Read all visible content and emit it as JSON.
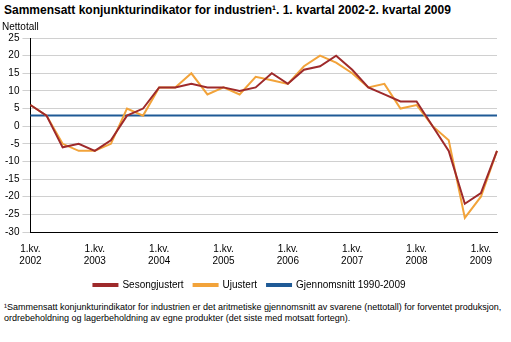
{
  "chart_data": {
    "type": "line",
    "title": "Sammensatt konjunkturindikator for industrien¹. 1. kvartal 2002-2. kvartal 2009",
    "y_label": "Nettotall",
    "footnote": "¹Sammensatt konjunkturindikator for industrien er det aritmetiske gjennomsnitt av svarene (nettotall) for forventet produksjon, ordrebeholdning og lagerbeholdning av egne produkter (det siste med motsatt fortegn).",
    "categories": [
      [
        "1.kv.",
        "2002"
      ],
      null,
      null,
      null,
      [
        "1.kv.",
        "2003"
      ],
      null,
      null,
      null,
      [
        "1.kv.",
        "2004"
      ],
      null,
      null,
      null,
      [
        "1.kv.",
        "2005"
      ],
      null,
      null,
      null,
      [
        "1.kv.",
        "2006"
      ],
      null,
      null,
      null,
      [
        "1.kv.",
        "2007"
      ],
      null,
      null,
      null,
      [
        "1.kv.",
        "2008"
      ],
      null,
      null,
      null,
      [
        "1.kv.",
        "2009"
      ],
      null
    ],
    "series": [
      {
        "name": "Sesongjustert",
        "color": "#9e2a2b",
        "values": [
          6,
          3,
          -6,
          -5,
          -7,
          -4,
          3,
          5,
          11,
          11,
          12,
          11,
          11,
          10,
          11,
          15,
          12,
          16,
          17,
          20,
          16,
          11,
          9,
          7,
          7,
          0,
          -7,
          -22,
          -19,
          -7
        ]
      },
      {
        "name": "Ujustert",
        "color": "#f2a33a",
        "values": [
          6,
          3,
          -5,
          -7,
          -7,
          -5,
          5,
          3,
          11,
          11,
          15,
          9,
          11,
          9,
          14,
          13,
          12,
          17,
          20,
          18,
          15,
          11,
          12,
          5,
          6,
          0,
          -4,
          -26,
          -20,
          -7
        ]
      },
      {
        "name": "Gjennomsnitt 1990-2009",
        "color": "#1f5a96",
        "values": [
          3,
          3,
          3,
          3,
          3,
          3,
          3,
          3,
          3,
          3,
          3,
          3,
          3,
          3,
          3,
          3,
          3,
          3,
          3,
          3,
          3,
          3,
          3,
          3,
          3,
          3,
          3,
          3,
          3,
          3
        ]
      }
    ],
    "ylim": [
      -30,
      25
    ],
    "yticks": [
      -30,
      -25,
      -20,
      -15,
      -10,
      -5,
      0,
      5,
      10,
      15,
      20,
      25
    ],
    "grid": true,
    "legend": "bottom"
  }
}
